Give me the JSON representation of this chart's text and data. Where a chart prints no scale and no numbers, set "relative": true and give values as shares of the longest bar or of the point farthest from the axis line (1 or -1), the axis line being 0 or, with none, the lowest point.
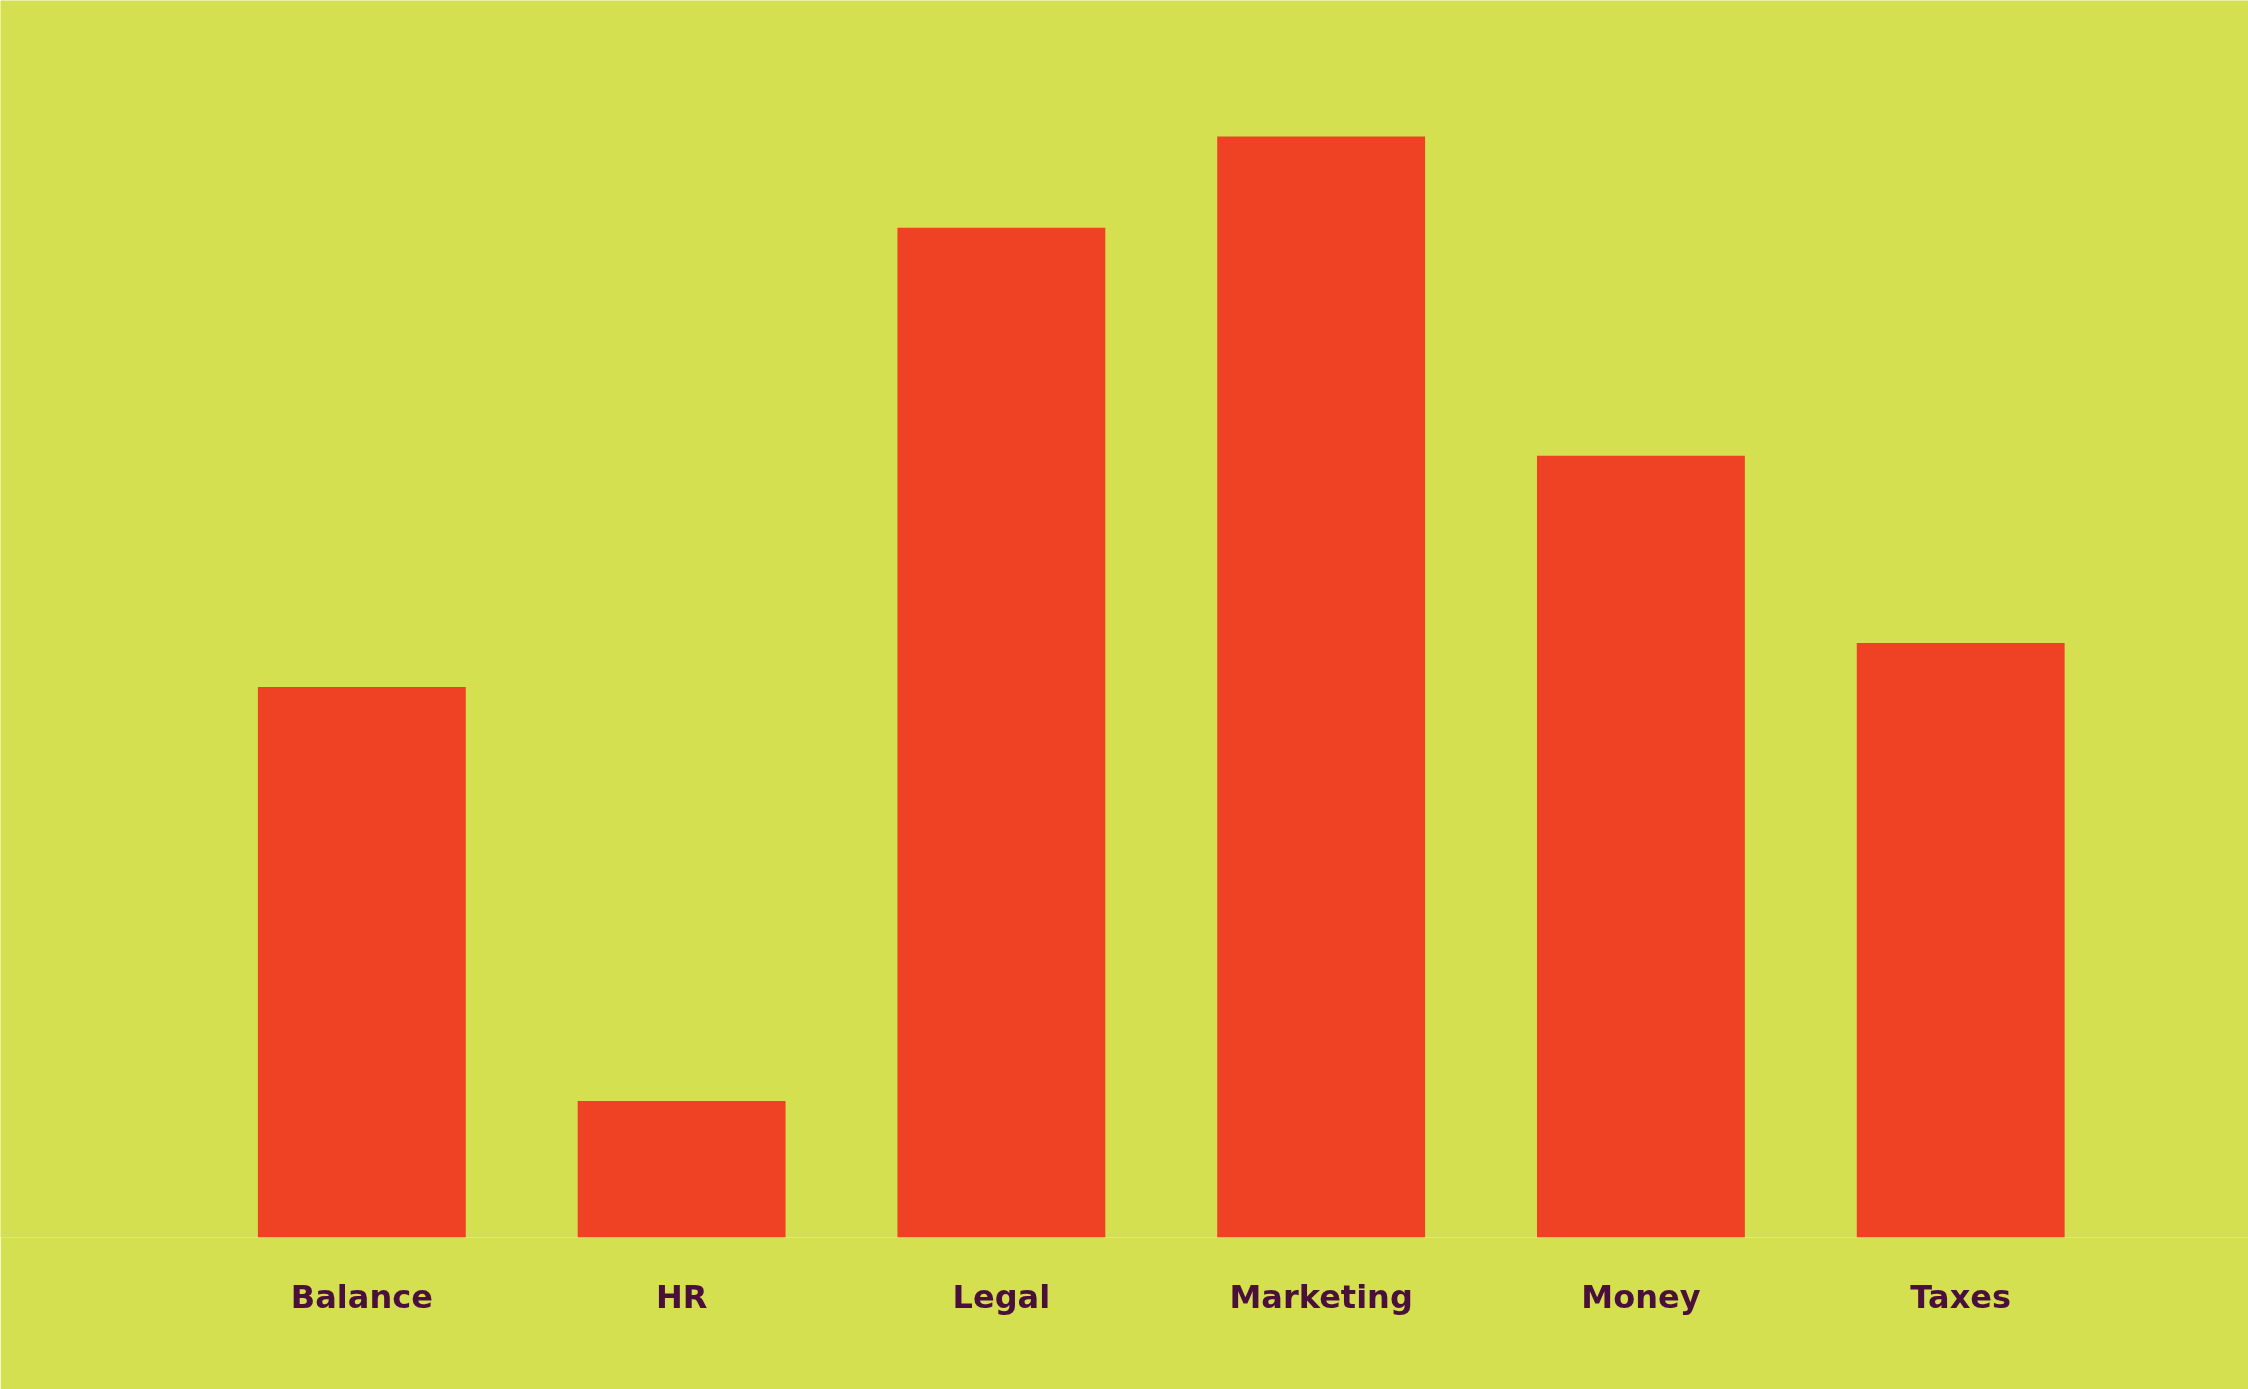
{
  "chart_data": {
    "type": "bar",
    "relative": true,
    "categories": [
      "Balance",
      "HR",
      "Legal",
      "Marketing",
      "Money",
      "Taxes"
    ],
    "values": [
      0.5,
      0.124,
      0.917,
      1,
      0.71,
      0.54
    ],
    "color": "#ef4225",
    "grid": false
  }
}
